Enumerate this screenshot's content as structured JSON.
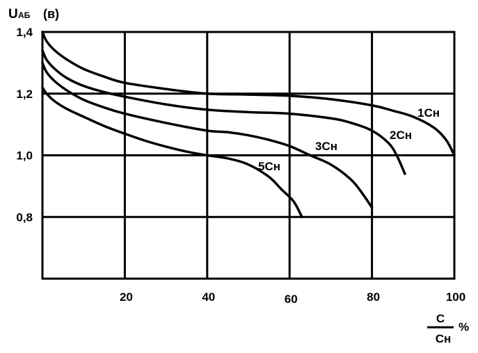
{
  "chart_data": {
    "type": "line",
    "ylabel": {
      "main": "U",
      "sub": "АБ",
      "unit": "(в)"
    },
    "xlabel": {
      "numerator": "С",
      "denominator": "Сн",
      "unit": "%"
    },
    "xlim": [
      0,
      100
    ],
    "ylim": [
      0.6,
      1.4
    ],
    "x_ticks": [
      "20",
      "40",
      "60",
      "80",
      "100"
    ],
    "y_ticks": [
      "1,4",
      "1,2",
      "1,0",
      "0,8"
    ],
    "grid": true,
    "series": [
      {
        "name": "1Сн",
        "x": [
          0,
          1,
          3,
          6,
          10,
          15,
          20,
          30,
          40,
          50,
          60,
          70,
          80,
          85,
          90,
          95,
          98,
          100
        ],
        "y": [
          1.4,
          1.37,
          1.34,
          1.31,
          1.28,
          1.255,
          1.235,
          1.215,
          1.2,
          1.197,
          1.193,
          1.182,
          1.162,
          1.145,
          1.125,
          1.09,
          1.05,
          1.0
        ]
      },
      {
        "name": "2Сн",
        "x": [
          0,
          1,
          3,
          6,
          10,
          15,
          20,
          30,
          40,
          50,
          60,
          70,
          75,
          80,
          84,
          86,
          88
        ],
        "y": [
          1.34,
          1.31,
          1.28,
          1.25,
          1.225,
          1.205,
          1.19,
          1.165,
          1.148,
          1.14,
          1.135,
          1.12,
          1.105,
          1.08,
          1.04,
          1.0,
          0.94
        ]
      },
      {
        "name": "3Сн",
        "x": [
          0,
          1,
          3,
          6,
          10,
          15,
          20,
          30,
          40,
          45,
          50,
          55,
          60,
          65,
          70,
          75,
          78,
          80
        ],
        "y": [
          1.3,
          1.27,
          1.24,
          1.21,
          1.18,
          1.155,
          1.135,
          1.105,
          1.08,
          1.075,
          1.065,
          1.05,
          1.03,
          1.0,
          0.97,
          0.92,
          0.87,
          0.83
        ]
      },
      {
        "name": "5Сн",
        "x": [
          0,
          1,
          3,
          6,
          10,
          15,
          20,
          25,
          30,
          35,
          40,
          45,
          50,
          55,
          58,
          61,
          63
        ],
        "y": [
          1.22,
          1.2,
          1.175,
          1.15,
          1.125,
          1.095,
          1.07,
          1.047,
          1.028,
          1.012,
          1.0,
          0.99,
          0.97,
          0.93,
          0.89,
          0.85,
          0.8
        ]
      }
    ]
  }
}
